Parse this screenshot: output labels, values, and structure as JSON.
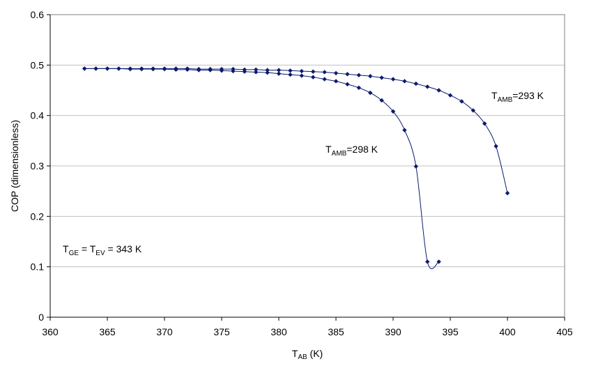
{
  "chart_data": {
    "type": "line",
    "title": "",
    "xlabel": {
      "main": "T",
      "sub": "AB",
      "suffix": " (K)"
    },
    "ylabel": "COP (dimensionless)",
    "xlim": [
      360,
      405
    ],
    "ylim": [
      0,
      0.6
    ],
    "xticks": [
      360,
      365,
      370,
      375,
      380,
      385,
      390,
      395,
      400,
      405
    ],
    "yticks": [
      "0",
      "0.1",
      "0.2",
      "0.3",
      "0.4",
      "0.5",
      "0.6"
    ],
    "grid": "horizontal",
    "legend": "none",
    "series_color": "#0a1a6e",
    "series": [
      {
        "label": {
          "main": "T",
          "sub": "AMB",
          "suffix": "=293 K"
        },
        "x": [
          363,
          364,
          365,
          366,
          367,
          368,
          369,
          370,
          371,
          372,
          373,
          374,
          375,
          376,
          377,
          378,
          379,
          380,
          381,
          382,
          383,
          384,
          385,
          386,
          387,
          388,
          389,
          390,
          391,
          392,
          393,
          394,
          395,
          396,
          397,
          398,
          399,
          400
        ],
        "y": [
          0.493,
          0.493,
          0.493,
          0.493,
          0.493,
          0.493,
          0.493,
          0.493,
          0.493,
          0.493,
          0.492,
          0.492,
          0.492,
          0.492,
          0.491,
          0.491,
          0.49,
          0.49,
          0.489,
          0.488,
          0.487,
          0.486,
          0.484,
          0.482,
          0.48,
          0.478,
          0.475,
          0.472,
          0.468,
          0.463,
          0.457,
          0.45,
          0.44,
          0.428,
          0.41,
          0.384,
          0.339,
          0.246
        ]
      },
      {
        "label": {
          "main": "T",
          "sub": "AMB",
          "suffix": "=298 K"
        },
        "x": [
          363,
          364,
          365,
          366,
          367,
          368,
          369,
          370,
          371,
          372,
          373,
          374,
          375,
          376,
          377,
          378,
          379,
          380,
          381,
          382,
          383,
          384,
          385,
          386,
          387,
          388,
          389,
          390,
          391,
          392,
          393,
          394
        ],
        "y": [
          0.493,
          0.493,
          0.493,
          0.493,
          0.492,
          0.492,
          0.492,
          0.492,
          0.491,
          0.491,
          0.49,
          0.49,
          0.489,
          0.488,
          0.487,
          0.486,
          0.485,
          0.483,
          0.481,
          0.479,
          0.476,
          0.472,
          0.468,
          0.462,
          0.455,
          0.445,
          0.43,
          0.408,
          0.371,
          0.299,
          0.11,
          0.11
        ]
      }
    ],
    "annotation": {
      "parts": [
        "T",
        "GE",
        " =  T",
        "EV",
        " = 343 K"
      ]
    }
  }
}
